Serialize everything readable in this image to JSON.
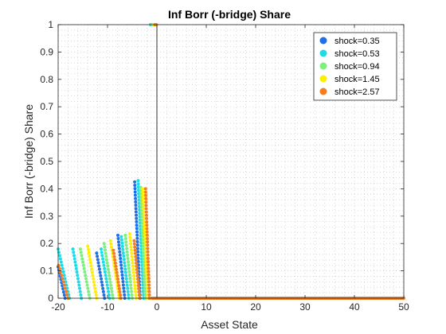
{
  "chart_data": {
    "type": "scatter",
    "title": "Inf Borr (-bridge) Share",
    "xlabel": "Asset State",
    "ylabel": "Inf Borr (-bridge) Share",
    "xlim": [
      -20,
      50
    ],
    "ylim": [
      0,
      1
    ],
    "xticks": [
      "-20",
      "-10",
      "0",
      "10",
      "20",
      "30",
      "40",
      "50"
    ],
    "yticks": [
      "0",
      "0.1",
      "0.2",
      "0.3",
      "0.4",
      "0.5",
      "0.6",
      "0.7",
      "0.8",
      "0.9",
      "1"
    ],
    "grid": "minor-dotted",
    "legend_position": "top-right",
    "series": [
      {
        "name": "shock=0.35",
        "color": "#1f6fe6",
        "segments": [
          {
            "x0": -20.0,
            "y0": 0.115,
            "x1": -18.6,
            "y1": 0.0
          },
          {
            "x0": -12.2,
            "y0": 0.165,
            "x1": -10.6,
            "y1": 0.0
          },
          {
            "x0": -7.9,
            "y0": 0.23,
            "x1": -6.5,
            "y1": 0.0
          },
          {
            "x0": -4.5,
            "y0": 0.425,
            "x1": -3.4,
            "y1": 0.0
          }
        ]
      },
      {
        "name": "shock=0.53",
        "color": "#1fdbe6",
        "segments": [
          {
            "x0": -20.0,
            "y0": 0.18,
            "x1": -17.7,
            "y1": 0.0
          },
          {
            "x0": -17.0,
            "y0": 0.18,
            "x1": -15.3,
            "y1": 0.0
          },
          {
            "x0": -11.3,
            "y0": 0.18,
            "x1": -9.6,
            "y1": 0.0
          },
          {
            "x0": -7.2,
            "y0": 0.225,
            "x1": -5.7,
            "y1": 0.0
          },
          {
            "x0": -3.8,
            "y0": 0.43,
            "x1": -2.7,
            "y1": 0.0
          }
        ]
      },
      {
        "name": "shock=0.94",
        "color": "#7cf07c",
        "segments": [
          {
            "x0": -15.5,
            "y0": 0.18,
            "x1": -13.6,
            "y1": 0.0
          },
          {
            "x0": -10.7,
            "y0": 0.2,
            "x1": -8.9,
            "y1": 0.0
          },
          {
            "x0": -6.4,
            "y0": 0.23,
            "x1": -5.0,
            "y1": 0.0
          },
          {
            "x0": -3.3,
            "y0": 0.405,
            "x1": -2.3,
            "y1": 0.0
          }
        ]
      },
      {
        "name": "shock=1.45",
        "color": "#ffee00",
        "segments": [
          {
            "x0": -14.0,
            "y0": 0.19,
            "x1": -12.2,
            "y1": 0.0
          },
          {
            "x0": -9.4,
            "y0": 0.21,
            "x1": -7.6,
            "y1": 0.0
          },
          {
            "x0": -5.5,
            "y0": 0.235,
            "x1": -4.2,
            "y1": 0.0
          },
          {
            "x0": -2.9,
            "y0": 0.4,
            "x1": -1.8,
            "y1": 0.0
          }
        ]
      },
      {
        "name": "shock=2.57",
        "color": "#f57c1f",
        "segments": [
          {
            "x0": -19.9,
            "y0": 0.12,
            "x1": -18.0,
            "y1": 0.0
          },
          {
            "x0": -8.8,
            "y0": 0.175,
            "x1": -7.3,
            "y1": 0.0
          },
          {
            "x0": -4.6,
            "y0": 0.21,
            "x1": -3.5,
            "y1": 0.0
          },
          {
            "x0": -2.3,
            "y0": 0.4,
            "x1": -1.5,
            "y1": 0.0
          }
        ]
      }
    ],
    "top_cluster": [
      {
        "x": -1.3,
        "y": 1.0,
        "color": "#1fdbe6"
      },
      {
        "x": -1.0,
        "y": 1.0,
        "color": "#7cf07c"
      },
      {
        "x": -0.7,
        "y": 1.0,
        "color": "#ffee00"
      },
      {
        "x": -0.4,
        "y": 1.0,
        "color": "#f57c1f"
      },
      {
        "x": -0.1,
        "y": 1.0,
        "color": "#f57c1f"
      }
    ],
    "baseline": {
      "x_start": -1.0,
      "x_end": 50,
      "y": 0,
      "color": "#f57c1f"
    }
  }
}
